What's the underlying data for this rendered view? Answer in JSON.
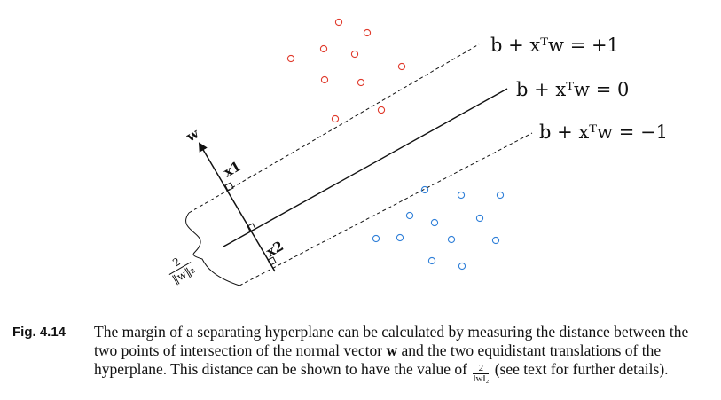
{
  "figure": {
    "eq_plus": "b + xᵀw = +1",
    "eq_zero": "b + xᵀw = 0",
    "eq_minus": "b + xᵀw = −1",
    "label_w": "w",
    "label_x1": "x1",
    "label_x2": "x2",
    "margin_num": "2",
    "margin_den": "‖w‖₂"
  },
  "caption": {
    "label": "Fig. 4.14",
    "text_1": "The margin of a separating hyperplane can be calculated by measuring the distance between the two points of intersection of the normal vector ",
    "bold_w": "w",
    "text_2": " and the two equidistant translations of the hyperplane. This distance can be shown to have the value of ",
    "frac_num": "2",
    "frac_den": "‖w‖₂",
    "text_3": " (see text for further details)."
  },
  "colors": {
    "red_points": "#e03a2c",
    "blue_points": "#2f7fd8",
    "ink": "#111111"
  }
}
